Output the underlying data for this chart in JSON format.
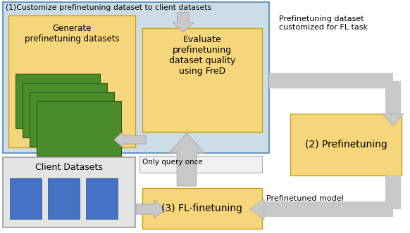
{
  "fig_width": 5.82,
  "fig_height": 3.32,
  "dpi": 100,
  "bg_color": "#ffffff",
  "light_blue_bg": "#ccdde8",
  "yellow_box": "#f5d67a",
  "green_dark": "#4a8c2a",
  "green_border": "#2d5a1b",
  "blue_rect": "#4472c4",
  "blue_rect_border": "#2a4a8a",
  "gray_arrow": "#c8c8c8",
  "gray_arrow_border": "#aaaaaa",
  "gray_box_fill": "#e4e4e4",
  "gray_box_border": "#aaaaaa",
  "blue_section_border": "#6699bb",
  "yellow_border": "#c8a010",
  "title_text": "(1)Customize prefinetuning dataset to client datasets",
  "gen_text": "Generate\nprefinetuning datasets",
  "eval_text": "Evaluate\nprefinetuning\ndataset quality\nusing FreD",
  "prefine_label": "Prefinetuning dataset\ncustomized for FL task",
  "step2_text": "(2) Prefinetuning",
  "client_text": "Client Datasets",
  "query_text": "Only query once",
  "fl_text": "(3) FL-finetuning",
  "pretrained_label": "Prefinetuned model"
}
